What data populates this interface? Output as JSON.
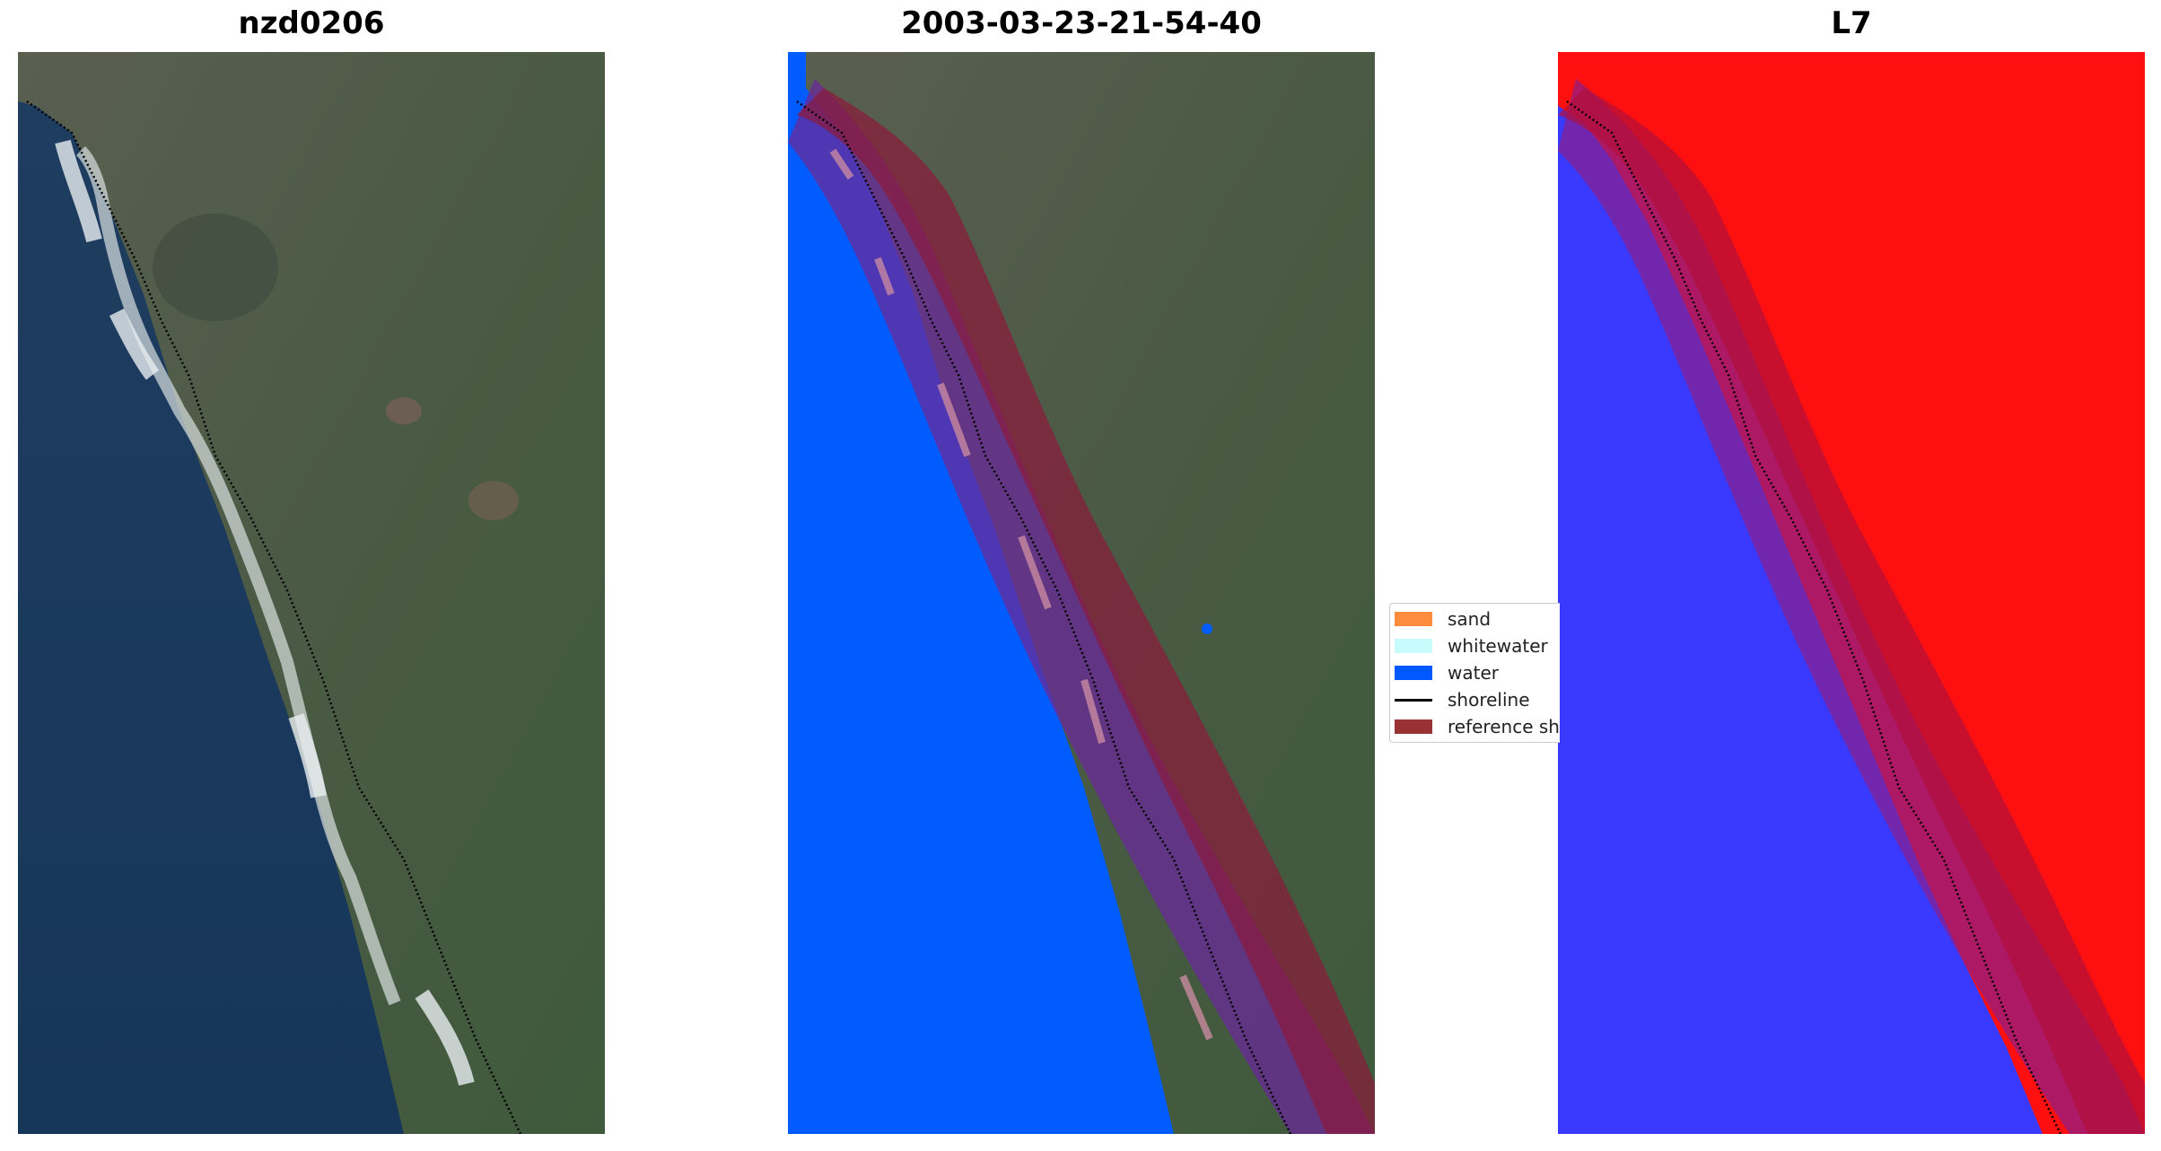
{
  "titles": {
    "left": "nzd0206",
    "middle": "2003-03-23-21-54-40",
    "right": "L7"
  },
  "legend": {
    "items": [
      {
        "label": "sand",
        "color": "#ff8c3c"
      },
      {
        "label": "whitewater",
        "color": "#c8fcfc"
      },
      {
        "label": "water",
        "color": "#0059ff"
      },
      {
        "label": "shoreline",
        "color": "#000000"
      },
      {
        "label": "reference sh",
        "color": "#993333"
      }
    ]
  },
  "colors": {
    "ocean_rgb": "#1d3a5c",
    "land_rgb": "#4e5a45",
    "water_class": "#005cff",
    "buffer_overlay": "#8b1a3a",
    "index_positive": "#ff1010",
    "index_negative": "#3a3aff"
  }
}
